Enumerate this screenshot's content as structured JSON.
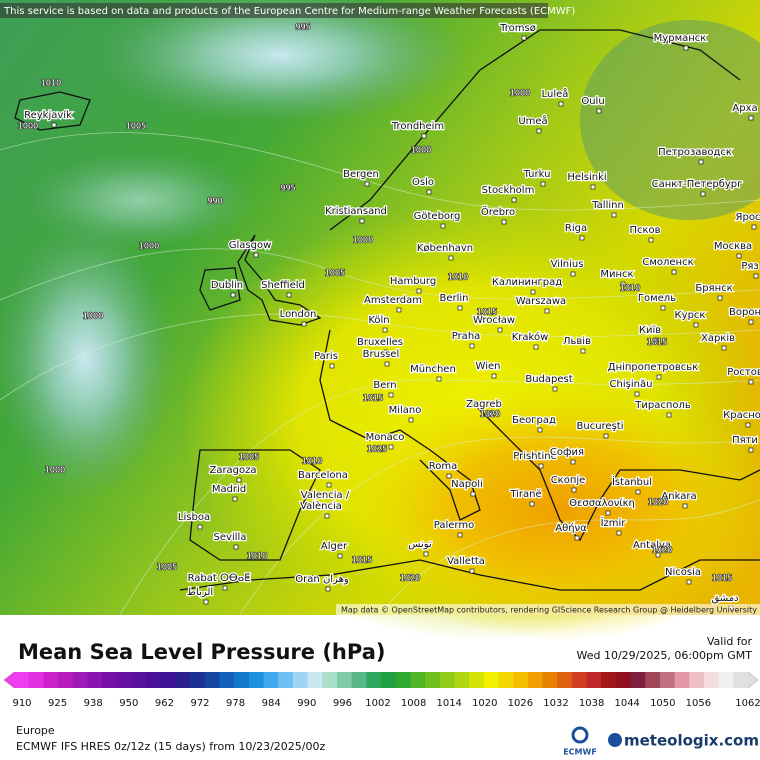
{
  "header": {
    "disclaimer": "This service is based on data and products of the European Centre for Medium-range Weather Forecasts (ECMWF)"
  },
  "map": {
    "cities": [
      "Tromsø",
      "Мурманск",
      "Reykjavík",
      "Luleå",
      "Oulu",
      "Арха",
      "Umeå",
      "Trondheim",
      "Петрозаводск",
      "Bergen",
      "Turku",
      "Helsinki",
      "Санкт-Петербург",
      "Oslo",
      "Stockholm",
      "Kristiansand",
      "Göteborg",
      "Örebro",
      "Tallinn",
      "Ярос",
      "Riga",
      "Псков",
      "Glasgow",
      "København",
      "Москва",
      "Vilnius",
      "Минск",
      "Смоленск",
      "Ряз",
      "Hamburg",
      "Калининград",
      "Dublin",
      "Sheffield",
      "Брянск",
      "Amsterdam",
      "Berlin",
      "Warszawa",
      "Гомель",
      "London",
      "Köln",
      "Курск",
      "Ворон",
      "Київ",
      "Praha",
      "Wrocław",
      "Kraków",
      "Львів",
      "Харків",
      "Bruxelles",
      "Brussel",
      "Paris",
      "München",
      "Wien",
      "Дніпропетровськ",
      "Ростов",
      "Budapest",
      "Chişinău",
      "Bern",
      "Milano",
      "Zagreb",
      "Београд",
      "Тирасполь",
      "Красно",
      "Bucureşti",
      "Monaco",
      "Пяти",
      "Prishtinë",
      "София",
      "Zaragoza",
      "Barcelona",
      "Roma",
      "Скопје",
      "İstanbul",
      "Madrid",
      "Napoli",
      "Tiranë",
      "Θεσσαλονίκη",
      "Ankara",
      "Valencia /",
      "València",
      "Lisboa",
      "İzmir",
      "Αθήνα",
      "Sevilla",
      "Palermo",
      "Antalya",
      "Alger",
      "تونس",
      "Valletta",
      "Nicosia",
      "Rabat ⵔⴱⴰⵟ",
      "الرباط",
      "Oran وهران",
      "دمشق"
    ],
    "isobar_labels": [
      995,
      1010,
      1005,
      1000,
      1000,
      1000,
      990,
      995,
      1000,
      1000,
      1005,
      1010,
      1000,
      1015,
      1015,
      1015,
      1020,
      1025,
      1005,
      1010,
      1000,
      1005,
      1010,
      1015,
      1020,
      1020,
      1015,
      1020,
      1010
    ],
    "attribution": "Map data © OpenStreetMap contributors, rendering GIScience Research Group @ Heidelberg University"
  },
  "legend": {
    "title": "Mean Sea Level Pressure (hPa)",
    "valid_label": "Valid for",
    "valid_time": "Wed 10/29/2025, 06:00pm GMT",
    "colorbar": {
      "ticks": [
        910,
        925,
        938,
        950,
        962,
        972,
        978,
        984,
        990,
        996,
        1002,
        1008,
        1014,
        1020,
        1026,
        1032,
        1038,
        1044,
        1050,
        1056,
        1062
      ],
      "colors": [
        "#f03cf0",
        "#e030e0",
        "#cc22cc",
        "#b81cc0",
        "#a018b8",
        "#8c14b0",
        "#7810a8",
        "#6810a0",
        "#5a109c",
        "#4a1098",
        "#3c1494",
        "#2c2090",
        "#1c3090",
        "#1448a0",
        "#1460b8",
        "#1478c8",
        "#1e90e0",
        "#40a8f0",
        "#70c0f4",
        "#a0d4f4",
        "#c8e8f0",
        "#a8e0c8",
        "#80cca8",
        "#58b888",
        "#30a860",
        "#20a040",
        "#30a830",
        "#50b428",
        "#70c020",
        "#90cc18",
        "#b0d810",
        "#d0e408",
        "#f0f000",
        "#f4d800",
        "#f4c000",
        "#f0a000",
        "#e88000",
        "#e06010",
        "#d04020",
        "#c02828",
        "#a01818",
        "#901020",
        "#802040",
        "#a04858",
        "#c07080",
        "#e098a8",
        "#f0c0c8",
        "#f4dce0",
        "#f0f0f0",
        "#e0e0e0"
      ]
    }
  },
  "footer": {
    "region": "Europe",
    "model_run": "ECMWF IFS HRES 0z/12z (15 days) from  10/23/2025/00z",
    "ecmwf_logo": "ECMWF",
    "brand": "meteologix.com"
  }
}
